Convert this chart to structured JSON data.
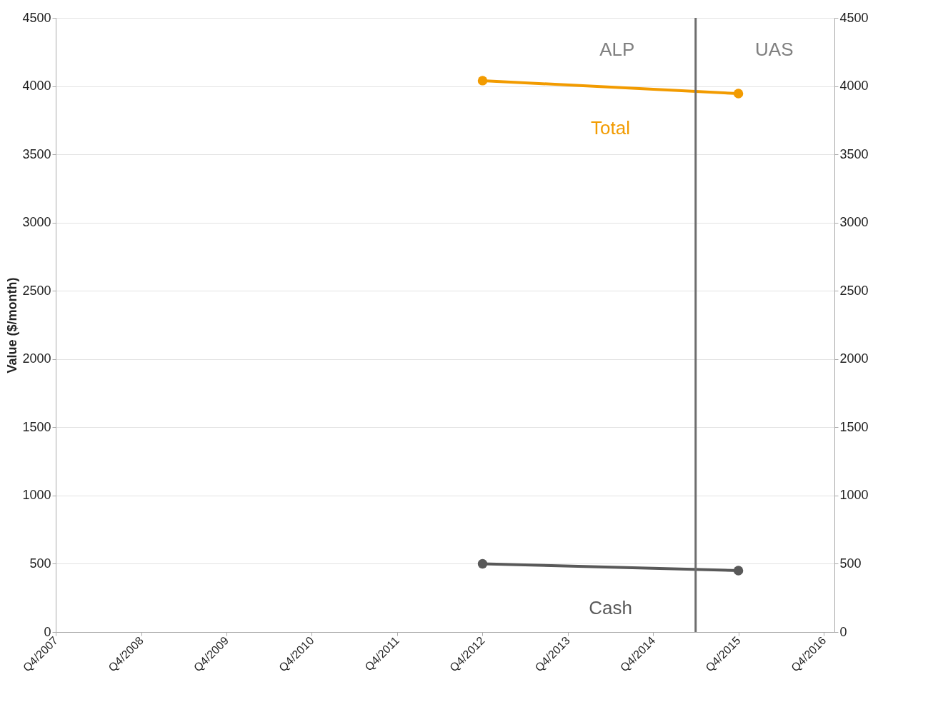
{
  "chart_data": {
    "type": "line",
    "ylabel": "Value ($/month)",
    "x": [
      "2012-10",
      "2015-10"
    ],
    "series": [
      {
        "name": "Total",
        "color": "#f29b00",
        "values": [
          4040,
          3945
        ]
      },
      {
        "name": "Cash",
        "color": "#595959",
        "values": [
          500,
          450
        ]
      }
    ],
    "xlim": [
      "2007-10",
      "2016-11-15"
    ],
    "xticks": [
      {
        "value": "2007-10",
        "label": "Q4/2007"
      },
      {
        "value": "2008-10",
        "label": "Q4/2008"
      },
      {
        "value": "2009-10",
        "label": "Q4/2009"
      },
      {
        "value": "2010-10",
        "label": "Q4/2010"
      },
      {
        "value": "2011-10",
        "label": "Q4/2011"
      },
      {
        "value": "2012-10",
        "label": "Q4/2012"
      },
      {
        "value": "2013-10",
        "label": "Q4/2013"
      },
      {
        "value": "2014-10",
        "label": "Q4/2014"
      },
      {
        "value": "2015-10",
        "label": "Q4/2015"
      },
      {
        "value": "2016-10",
        "label": "Q4/2016"
      }
    ],
    "ylim": [
      0,
      4500
    ],
    "yticks": [
      0,
      500,
      1000,
      1500,
      2000,
      2500,
      3000,
      3500,
      4000,
      4500
    ],
    "y2lim": [
      0,
      4500
    ],
    "y2ticks": [
      0,
      500,
      1000,
      1500,
      2000,
      2500,
      3000,
      3500,
      4000,
      4500
    ],
    "ref_lines": [
      {
        "axis": "x",
        "value": "2015-04",
        "color": "#6e6e6e"
      }
    ],
    "annotations": [
      "ALP",
      "UAS"
    ],
    "grid": "y",
    "legend": false,
    "marker": "circle",
    "line_style": "solid"
  }
}
